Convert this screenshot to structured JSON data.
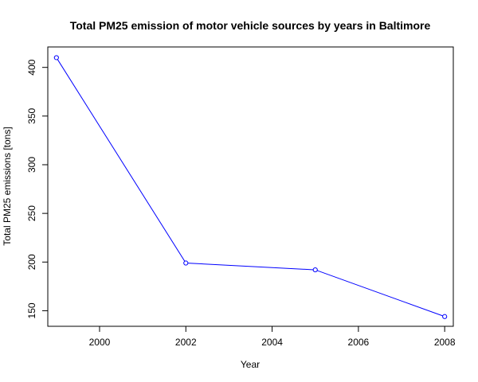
{
  "chart_data": {
    "type": "line",
    "title": "Total PM25 emission of motor vehicle sources by years in Baltimore",
    "xlabel": "Year",
    "ylabel": "Total PM25 emissions [tons]",
    "x": [
      1999,
      2002,
      2005,
      2008
    ],
    "series": [
      {
        "values": [
          410,
          199,
          192,
          144
        ]
      }
    ],
    "xlim": [
      1998.8,
      2008.2
    ],
    "ylim": [
      134,
      421
    ],
    "xticks": [
      2000,
      2002,
      2004,
      2006,
      2008
    ],
    "yticks": [
      150,
      200,
      250,
      300,
      350,
      400
    ],
    "line_color": "#0000ff",
    "marker": "open-circle",
    "grid": false,
    "legend": "none"
  }
}
